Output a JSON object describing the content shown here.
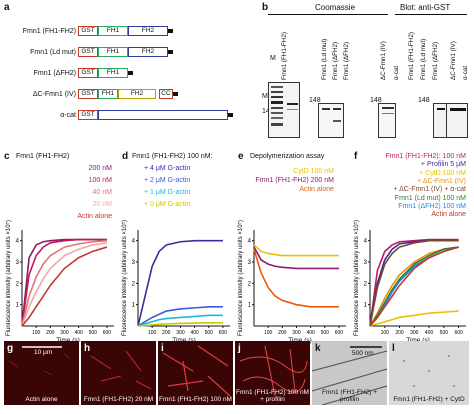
{
  "panels": {
    "a": {
      "letter": "a",
      "constructs": [
        {
          "name": "Fmn1 (FH1-FH2)",
          "domains": [
            "GST",
            "FH1",
            "FH2"
          ]
        },
        {
          "name": "Fmn1 (Ld mut)",
          "domains": [
            "GST",
            "FH1",
            "FH2"
          ]
        },
        {
          "name": "Fmn1 (ΔFH2)",
          "domains": [
            "GST",
            "FH1"
          ]
        },
        {
          "name": "ΔC-Fmn1 (IV)",
          "domains": [
            "GST",
            "FH1",
            "FH2",
            "CC"
          ]
        },
        {
          "name": "α-cat",
          "domains": [
            "GST"
          ]
        }
      ]
    },
    "b": {
      "letter": "b",
      "coomassie": "Coomassie",
      "blot": "Blot: anti-GST",
      "mr": "Mr(K)",
      "marker": "M",
      "kda": "148",
      "lanes": [
        "Fmn1 (FH1-FH2)",
        "Fmn1 (Ld mut)",
        "Fmn1 (ΔFH2)",
        "ΔC-Fmn1 (IV)",
        "α-cat"
      ]
    },
    "c": {
      "letter": "c",
      "title": "Fmn1 (FH1-FH2)",
      "legend": [
        "200 nM",
        "100 nM",
        "40 nM",
        "20 nM",
        "Actin alone"
      ]
    },
    "d": {
      "letter": "d",
      "title": "Fmn1 (FH1-FH2) 100 nM:",
      "legend": [
        "+ 4 μM G-actin",
        "+ 2 μM G-actin",
        "+ 1 μM G-actin",
        "+ 0 μM G-actin"
      ]
    },
    "e": {
      "letter": "e",
      "title": "Depolymerization assay",
      "legend": [
        "CytD 100 nM",
        "Fmn1 (FH1-FH2) 200 nM",
        "Actin alone"
      ]
    },
    "f": {
      "letter": "f",
      "legend": [
        "Fmn1 (FH1-FH2): 100 nM",
        "+ Profilin 5 μM",
        "+ CytD 100 nM",
        "+ ΔC-Fmn1 (IV)",
        "+ ΔC-Fmn1 (IV) + α-cat",
        "Fmn1 (Ld mut) 100 nM",
        "Fmn1 (ΔFH2) 100 nM",
        "Actin alone"
      ]
    },
    "axes": {
      "ylabel": "Fluorescence intensity (arbitrary units ×10⁵)",
      "xlabel": "Time (s)",
      "xticks": [
        "100",
        "200",
        "300",
        "400",
        "500",
        "600"
      ],
      "yticks": [
        "1",
        "2",
        "3",
        "4"
      ]
    },
    "micro": [
      {
        "letter": "g",
        "caption": "Actin alone",
        "scale": "10 μm"
      },
      {
        "letter": "h",
        "caption": "Fmn1 (FH1-FH2) 20 nM"
      },
      {
        "letter": "i",
        "caption": "Fmn1 (FH1-FH2) 100 nM"
      },
      {
        "letter": "j",
        "caption": "Fmn1 (FH1-FH2) 100 nM + profilin"
      },
      {
        "letter": "k",
        "caption": "Fmn1 (FH1-FH2) + profilin",
        "scale": "500 nm"
      },
      {
        "letter": "l",
        "caption": "Fmn1 (FH1-FH2) + CytD"
      }
    ]
  },
  "colors": {
    "gst": "#c0392b",
    "fh1": "#27ae60",
    "fh2": "#2c3e9e",
    "cc": "#c0392b",
    "fh3": "#b8a200"
  },
  "chart_data": [
    {
      "type": "line",
      "panel": "c",
      "xlim": [
        0,
        650
      ],
      "ylim": [
        0,
        4.5
      ],
      "series": [
        {
          "name": "200 nM",
          "color": "#8e1a6e",
          "x": [
            0,
            50,
            100,
            150,
            200,
            300,
            400,
            500,
            600
          ],
          "y": [
            0,
            3.2,
            3.8,
            3.95,
            4.0,
            4.05,
            4.05,
            4.05,
            4.05
          ]
        },
        {
          "name": "100 nM",
          "color": "#c2185b",
          "x": [
            0,
            50,
            100,
            150,
            200,
            300,
            400,
            500,
            600
          ],
          "y": [
            0,
            2.4,
            3.3,
            3.7,
            3.9,
            4.0,
            4.05,
            4.05,
            4.05
          ]
        },
        {
          "name": "40 nM",
          "color": "#e57373",
          "x": [
            0,
            50,
            100,
            150,
            200,
            300,
            400,
            500,
            600
          ],
          "y": [
            0,
            1.4,
            2.3,
            2.9,
            3.3,
            3.7,
            3.85,
            3.95,
            4.0
          ]
        },
        {
          "name": "20 nM",
          "color": "#f4a7a7",
          "x": [
            0,
            50,
            100,
            150,
            200,
            300,
            400,
            500,
            600
          ],
          "y": [
            0,
            0.9,
            1.6,
            2.2,
            2.7,
            3.3,
            3.6,
            3.8,
            3.9
          ]
        },
        {
          "name": "Actin alone",
          "color": "#c0392b",
          "x": [
            0,
            50,
            100,
            150,
            200,
            300,
            400,
            500,
            600
          ],
          "y": [
            0,
            0.4,
            0.9,
            1.4,
            1.9,
            2.7,
            3.2,
            3.5,
            3.7
          ]
        }
      ]
    },
    {
      "type": "line",
      "panel": "d",
      "xlim": [
        0,
        650
      ],
      "ylim": [
        0,
        4.5
      ],
      "series": [
        {
          "name": "+ 4 μM G-actin",
          "color": "#3f2a9e",
          "x": [
            0,
            50,
            100,
            150,
            200,
            300,
            400,
            500,
            600
          ],
          "y": [
            0,
            1.4,
            2.8,
            3.5,
            3.8,
            3.95,
            4.0,
            4.0,
            4.0
          ]
        },
        {
          "name": "+ 2 μM G-actin",
          "color": "#3b5bdb",
          "x": [
            0,
            50,
            100,
            150,
            200,
            300,
            400,
            500,
            600
          ],
          "y": [
            0,
            0.2,
            0.4,
            0.55,
            0.7,
            0.8,
            0.85,
            0.9,
            0.9
          ]
        },
        {
          "name": "+ 1 μM G-actin",
          "color": "#22b8cf",
          "x": [
            0,
            50,
            100,
            150,
            200,
            300,
            400,
            500,
            600
          ],
          "y": [
            0,
            0.1,
            0.2,
            0.3,
            0.35,
            0.4,
            0.45,
            0.5,
            0.5
          ]
        },
        {
          "name": "+ 0 μM G-actin",
          "color": "#c8c800",
          "x": [
            0,
            50,
            100,
            150,
            200,
            300,
            400,
            500,
            600
          ],
          "y": [
            0,
            0.02,
            0.05,
            0.08,
            0.1,
            0.12,
            0.14,
            0.15,
            0.15
          ]
        }
      ]
    },
    {
      "type": "line",
      "panel": "e",
      "xlim": [
        0,
        650
      ],
      "ylim": [
        0,
        4.5
      ],
      "series": [
        {
          "name": "CytD 100 nM",
          "color": "#e8c200",
          "x": [
            0,
            50,
            100,
            150,
            200,
            300,
            400,
            500,
            600
          ],
          "y": [
            3.8,
            3.5,
            3.4,
            3.35,
            3.3,
            3.3,
            3.3,
            3.3,
            3.3
          ]
        },
        {
          "name": "Fmn1 (FH1-FH2) 200 nM",
          "color": "#8e1a6e",
          "x": [
            0,
            50,
            100,
            150,
            200,
            300,
            400,
            500,
            600
          ],
          "y": [
            3.7,
            3.1,
            2.9,
            2.8,
            2.75,
            2.7,
            2.7,
            2.7,
            2.7
          ]
        },
        {
          "name": "Actin alone",
          "color": "#e8590c",
          "x": [
            0,
            50,
            100,
            150,
            200,
            300,
            400,
            500,
            600
          ],
          "y": [
            3.6,
            2.5,
            1.8,
            1.4,
            1.2,
            1.0,
            0.9,
            0.9,
            0.9
          ]
        }
      ]
    },
    {
      "type": "line",
      "panel": "f",
      "xlim": [
        0,
        650
      ],
      "ylim": [
        0,
        4.5
      ],
      "series": [
        {
          "name": "Fmn1 (FH1-FH2): 100 nM",
          "color": "#c2185b",
          "x": [
            0,
            50,
            100,
            150,
            200,
            300,
            400,
            500,
            600
          ],
          "y": [
            0,
            2.6,
            3.5,
            3.8,
            3.95,
            4.0,
            4.05,
            4.05,
            4.05
          ]
        },
        {
          "name": "+ Profilin 5 μM",
          "color": "#3f2a9e",
          "x": [
            0,
            50,
            100,
            150,
            200,
            300,
            400,
            500,
            600
          ],
          "y": [
            0,
            2.0,
            3.1,
            3.6,
            3.85,
            3.95,
            4.0,
            4.0,
            4.0
          ]
        },
        {
          "name": "+ CytD 100 nM",
          "color": "#e8c200",
          "x": [
            0,
            50,
            100,
            150,
            200,
            300,
            400,
            500,
            600
          ],
          "y": [
            0,
            0.1,
            0.2,
            0.3,
            0.4,
            0.5,
            0.6,
            0.65,
            0.7
          ]
        },
        {
          "name": "+ ΔC-Fmn1 (IV)",
          "color": "#f08c00",
          "x": [
            0,
            50,
            100,
            150,
            200,
            300,
            400,
            500,
            600
          ],
          "y": [
            0,
            0.6,
            1.3,
            1.9,
            2.4,
            3.0,
            3.4,
            3.6,
            3.7
          ]
        },
        {
          "name": "+ ΔC-Fmn1 (IV) + α-cat",
          "color": "#7a4a2a",
          "x": [
            0,
            50,
            100,
            150,
            200,
            300,
            400,
            500,
            600
          ],
          "y": [
            0,
            1.8,
            2.9,
            3.4,
            3.7,
            3.9,
            4.0,
            4.0,
            4.0
          ]
        },
        {
          "name": "Fmn1 (Ld mut) 100 nM",
          "color": "#2e7d32",
          "x": [
            0,
            50,
            100,
            150,
            200,
            300,
            400,
            500,
            600
          ],
          "y": [
            0,
            0.5,
            1.1,
            1.7,
            2.2,
            2.9,
            3.3,
            3.6,
            3.7
          ]
        },
        {
          "name": "Fmn1 (ΔFH2) 100 nM",
          "color": "#1e88e5",
          "x": [
            0,
            50,
            100,
            150,
            200,
            300,
            400,
            500,
            600
          ],
          "y": [
            0,
            0.4,
            1.0,
            1.6,
            2.1,
            2.8,
            3.2,
            3.5,
            3.7
          ]
        },
        {
          "name": "Actin alone",
          "color": "#c0392b",
          "x": [
            0,
            50,
            100,
            150,
            200,
            300,
            400,
            500,
            600
          ],
          "y": [
            0,
            0.4,
            0.9,
            1.4,
            1.9,
            2.7,
            3.2,
            3.5,
            3.7
          ]
        }
      ]
    }
  ]
}
